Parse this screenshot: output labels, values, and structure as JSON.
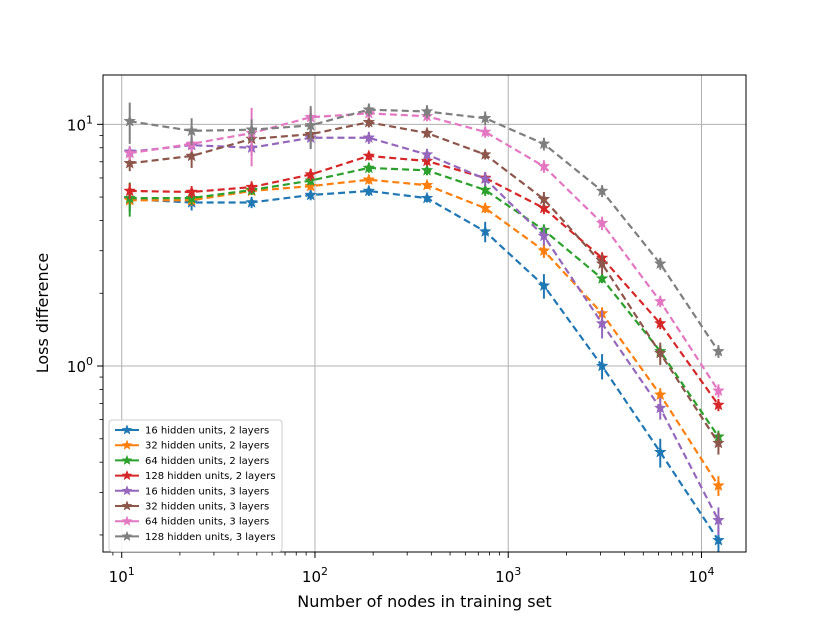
{
  "chart_data": {
    "type": "line",
    "title": "",
    "xlabel": "Number of nodes in training set",
    "ylabel": "Loss difference",
    "xscale": "log",
    "yscale": "log",
    "xlim": [
      8,
      17000
    ],
    "ylim": [
      0.17,
      16
    ],
    "grid": true,
    "legend_position": "lower-left",
    "x_ticks": [
      {
        "value": 10,
        "base": "10",
        "exp": "1"
      },
      {
        "value": 100,
        "base": "10",
        "exp": "2"
      },
      {
        "value": 1000,
        "base": "10",
        "exp": "3"
      },
      {
        "value": 10000,
        "base": "10",
        "exp": "4"
      }
    ],
    "y_ticks": [
      {
        "value": 1,
        "base": "10",
        "exp": "0"
      },
      {
        "value": 10,
        "base": "10",
        "exp": "1"
      }
    ],
    "series": [
      {
        "name": "16 hidden units, 2 layers",
        "color": "#1f77b4",
        "x": [
          11,
          23,
          47,
          95,
          190,
          380,
          760,
          1530,
          3060,
          6120,
          12240
        ],
        "y": [
          4.9,
          4.75,
          4.75,
          5.1,
          5.3,
          4.95,
          3.6,
          2.15,
          1.0,
          0.44,
          0.19
        ],
        "err": [
          0.55,
          0.35,
          0.25,
          0.25,
          0.25,
          0.2,
          0.35,
          0.25,
          0.12,
          0.06,
          0.025
        ]
      },
      {
        "name": "32 hidden units, 2 layers",
        "color": "#ff7f0e",
        "x": [
          11,
          23,
          47,
          95,
          190,
          380,
          760,
          1530,
          3060,
          6120,
          12240
        ],
        "y": [
          4.85,
          4.85,
          5.3,
          5.55,
          5.9,
          5.6,
          4.5,
          3.0,
          1.65,
          0.76,
          0.32
        ],
        "err": [
          0.3,
          0.25,
          0.2,
          0.2,
          0.25,
          0.2,
          0.2,
          0.2,
          0.1,
          0.05,
          0.03
        ]
      },
      {
        "name": "64 hidden units, 2 layers",
        "color": "#2ca02c",
        "x": [
          11,
          23,
          47,
          95,
          190,
          380,
          760,
          1530,
          3060,
          6120,
          12240
        ],
        "y": [
          4.95,
          4.95,
          5.35,
          5.85,
          6.6,
          6.45,
          5.35,
          3.65,
          2.3,
          1.15,
          0.51
        ],
        "err": [
          0.8,
          0.3,
          0.25,
          0.25,
          0.3,
          0.3,
          0.3,
          0.2,
          0.1,
          0.07,
          0.03
        ]
      },
      {
        "name": "128 hidden units, 2 layers",
        "color": "#d62728",
        "x": [
          11,
          23,
          47,
          95,
          190,
          380,
          760,
          1530,
          3060,
          6120,
          12240
        ],
        "y": [
          5.3,
          5.25,
          5.5,
          6.2,
          7.4,
          7.05,
          6.0,
          4.5,
          2.8,
          1.5,
          0.69
        ],
        "err": [
          0.4,
          0.3,
          0.3,
          0.35,
          0.3,
          0.3,
          0.3,
          0.25,
          0.15,
          0.08,
          0.04
        ]
      },
      {
        "name": "16 hidden units, 3 layers",
        "color": "#9467bd",
        "x": [
          11,
          23,
          47,
          95,
          190,
          380,
          760,
          1530,
          3060,
          6120,
          12240
        ],
        "y": [
          7.7,
          8.2,
          8.0,
          8.8,
          8.8,
          7.5,
          5.95,
          3.45,
          1.5,
          0.67,
          0.23
        ],
        "err": [
          0.4,
          0.6,
          0.6,
          0.8,
          0.5,
          0.4,
          0.4,
          0.3,
          0.2,
          0.07,
          0.03
        ]
      },
      {
        "name": "32 hidden units, 3 layers",
        "color": "#8c564b",
        "x": [
          11,
          23,
          47,
          95,
          190,
          380,
          760,
          1530,
          3060,
          6120,
          12240
        ],
        "y": [
          6.9,
          7.4,
          8.7,
          9.1,
          10.2,
          9.2,
          7.5,
          4.9,
          2.65,
          1.13,
          0.48
        ],
        "err": [
          0.5,
          0.8,
          0.6,
          0.6,
          0.5,
          0.4,
          0.35,
          0.35,
          0.25,
          0.12,
          0.05
        ]
      },
      {
        "name": "64 hidden units, 3 layers",
        "color": "#e377c2",
        "x": [
          11,
          23,
          47,
          95,
          190,
          380,
          760,
          1530,
          3060,
          6120,
          12240
        ],
        "y": [
          7.6,
          8.3,
          9.2,
          10.7,
          11.1,
          10.8,
          9.3,
          6.7,
          3.9,
          1.85,
          0.79
        ],
        "err": [
          0.5,
          0.6,
          2.5,
          1.0,
          0.5,
          0.5,
          0.5,
          0.4,
          0.25,
          0.1,
          0.05
        ]
      },
      {
        "name": "128 hidden units, 3 layers",
        "color": "#7f7f7f",
        "x": [
          11,
          23,
          47,
          95,
          190,
          380,
          760,
          1530,
          3060,
          6120,
          12240
        ],
        "y": [
          10.3,
          9.4,
          9.5,
          9.9,
          11.5,
          11.3,
          10.6,
          8.3,
          5.3,
          2.65,
          1.15
        ],
        "err": [
          2.0,
          1.2,
          1.0,
          2.0,
          0.7,
          0.7,
          0.7,
          0.5,
          0.3,
          0.15,
          0.07
        ]
      }
    ]
  }
}
